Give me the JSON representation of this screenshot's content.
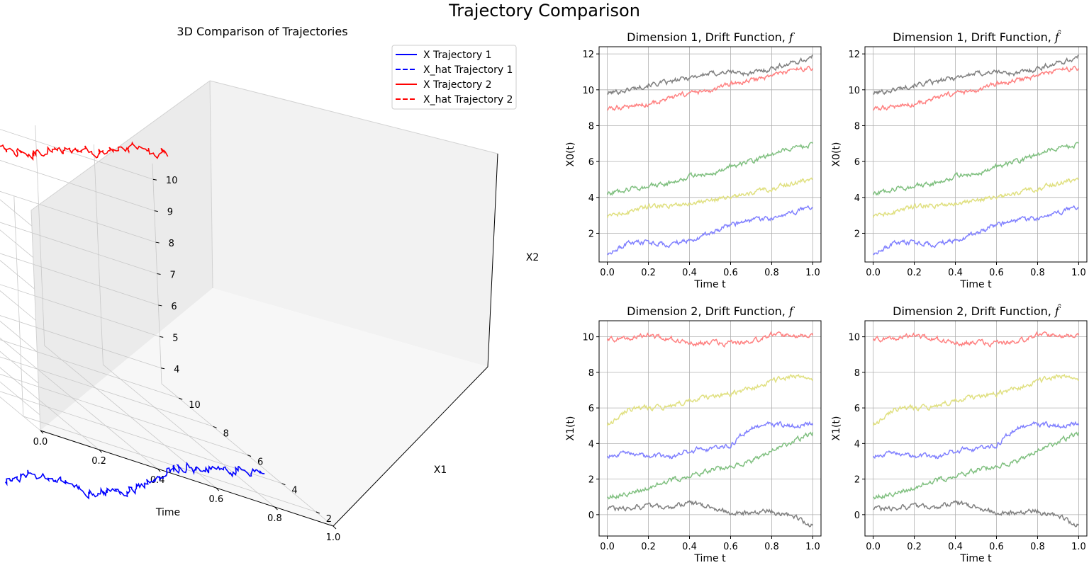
{
  "figure": {
    "title": "Trajectory Comparison"
  },
  "chart_data": [
    {
      "type": "line3d",
      "title": "3D Comparison of Trajectories",
      "xlabel": "Time",
      "ylabel": "X1",
      "zlabel": "X2",
      "xlim": [
        0,
        1
      ],
      "ylim": [
        1,
        11
      ],
      "zlim": [
        3.5,
        10.5
      ],
      "xticks": [
        "0.0",
        "0.2",
        "0.4",
        "0.6",
        "0.8",
        "1.0"
      ],
      "yticks": [
        "2",
        "4",
        "6",
        "8",
        "10"
      ],
      "zticks": [
        "4",
        "5",
        "6",
        "7",
        "8",
        "9",
        "10"
      ],
      "legend_position": "top-right",
      "legend": [
        {
          "label": "X Trajectory 1",
          "color": "#0000ff",
          "style": "solid"
        },
        {
          "label": "X_hat Trajectory 1",
          "color": "#0000ff",
          "style": "dashed"
        },
        {
          "label": "X Trajectory 2",
          "color": "#ff0000",
          "style": "solid"
        },
        {
          "label": "X_hat Trajectory 2",
          "color": "#ff0000",
          "style": "dashed"
        }
      ],
      "series": [
        {
          "name": "X Trajectory 1",
          "color": "#0000ff",
          "t": [
            0.0,
            0.1,
            0.2,
            0.3,
            0.4,
            0.5,
            0.6,
            0.7,
            0.8,
            0.9,
            1.0
          ],
          "x1": [
            3.3,
            3.5,
            3.3,
            3.2,
            3.6,
            3.7,
            3.9,
            4.9,
            5.1,
            5.0,
            5.1
          ],
          "x2": [
            0.9,
            1.3,
            1.5,
            1.4,
            1.6,
            2.0,
            2.6,
            2.7,
            2.8,
            3.1,
            3.5
          ]
        },
        {
          "name": "X Trajectory 2",
          "color": "#ff0000",
          "t": [
            0.0,
            0.1,
            0.2,
            0.3,
            0.4,
            0.5,
            0.6,
            0.7,
            0.8,
            0.9,
            1.0
          ],
          "x1": [
            9.8,
            9.9,
            10.1,
            9.9,
            9.6,
            9.7,
            9.6,
            9.7,
            10.1,
            10.1,
            10.0
          ],
          "x2": [
            8.9,
            9.1,
            9.2,
            9.5,
            9.8,
            9.9,
            10.3,
            10.5,
            10.8,
            11.1,
            11.2
          ]
        }
      ]
    },
    {
      "type": "line",
      "title": "Dimension 1, Drift Function",
      "func": "f",
      "xlabel": "Time t",
      "ylabel": "X0(t)",
      "xlim": [
        -0.04,
        1.04
      ],
      "ylim": [
        0.4,
        12.4
      ],
      "xticks": [
        0,
        0.2,
        0.4,
        0.6,
        0.8,
        1.0
      ],
      "xtick_labels": [
        "0.0",
        "0.2",
        "0.4",
        "0.6",
        "0.8",
        "1.0"
      ],
      "yticks": [
        2,
        4,
        6,
        8,
        10,
        12
      ],
      "ytick_labels": [
        "2",
        "4",
        "6",
        "8",
        "10",
        "12"
      ],
      "grid": true,
      "x": [
        0.0,
        0.1,
        0.2,
        0.3,
        0.4,
        0.5,
        0.6,
        0.7,
        0.8,
        0.9,
        1.0
      ],
      "series": [
        {
          "name": "gray",
          "color": "#808080",
          "values": [
            9.8,
            10.0,
            10.3,
            10.4,
            10.7,
            10.9,
            11.0,
            10.9,
            11.2,
            11.5,
            11.8
          ]
        },
        {
          "name": "red",
          "color": "#ff8080",
          "values": [
            8.9,
            9.1,
            9.2,
            9.5,
            9.8,
            9.9,
            10.3,
            10.5,
            10.8,
            11.1,
            11.2
          ]
        },
        {
          "name": "green",
          "color": "#80c080",
          "values": [
            4.2,
            4.5,
            4.6,
            4.8,
            5.2,
            5.3,
            5.7,
            6.0,
            6.4,
            6.8,
            6.9
          ]
        },
        {
          "name": "yellow",
          "color": "#e0e080",
          "values": [
            2.9,
            3.2,
            3.5,
            3.6,
            3.7,
            3.8,
            4.0,
            4.2,
            4.5,
            4.8,
            5.1
          ]
        },
        {
          "name": "blue",
          "color": "#8080ff",
          "values": [
            0.9,
            1.4,
            1.5,
            1.4,
            1.6,
            2.0,
            2.5,
            2.7,
            2.8,
            3.1,
            3.5
          ]
        }
      ]
    },
    {
      "type": "line",
      "title": "Dimension 1, Drift Function",
      "func": "f̂",
      "xlabel": "Time t",
      "ylabel": "X0(t)",
      "xlim": [
        -0.04,
        1.04
      ],
      "ylim": [
        0.4,
        12.4
      ],
      "xticks": [
        0,
        0.2,
        0.4,
        0.6,
        0.8,
        1.0
      ],
      "xtick_labels": [
        "0.0",
        "0.2",
        "0.4",
        "0.6",
        "0.8",
        "1.0"
      ],
      "yticks": [
        2,
        4,
        6,
        8,
        10,
        12
      ],
      "ytick_labels": [
        "2",
        "4",
        "6",
        "8",
        "10",
        "12"
      ],
      "grid": true,
      "x": [
        0.0,
        0.1,
        0.2,
        0.3,
        0.4,
        0.5,
        0.6,
        0.7,
        0.8,
        0.9,
        1.0
      ],
      "series": [
        {
          "name": "gray",
          "color": "#808080",
          "values": [
            9.8,
            10.0,
            10.3,
            10.4,
            10.7,
            10.9,
            11.0,
            10.9,
            11.2,
            11.5,
            11.8
          ]
        },
        {
          "name": "red",
          "color": "#ff8080",
          "values": [
            8.9,
            9.1,
            9.2,
            9.5,
            9.8,
            9.9,
            10.3,
            10.5,
            10.8,
            11.1,
            11.2
          ]
        },
        {
          "name": "green",
          "color": "#80c080",
          "values": [
            4.2,
            4.5,
            4.6,
            4.8,
            5.2,
            5.3,
            5.7,
            6.0,
            6.4,
            6.8,
            6.9
          ]
        },
        {
          "name": "yellow",
          "color": "#e0e080",
          "values": [
            2.9,
            3.2,
            3.5,
            3.6,
            3.7,
            3.8,
            4.0,
            4.2,
            4.5,
            4.8,
            5.1
          ]
        },
        {
          "name": "blue",
          "color": "#8080ff",
          "values": [
            0.9,
            1.4,
            1.5,
            1.4,
            1.6,
            2.0,
            2.5,
            2.7,
            2.8,
            3.1,
            3.5
          ]
        }
      ]
    },
    {
      "type": "line",
      "title": "Dimension 2, Drift Function",
      "func": "f",
      "xlabel": "Time t",
      "ylabel": "X1(t)",
      "xlim": [
        -0.04,
        1.04
      ],
      "ylim": [
        -1.2,
        10.9
      ],
      "xticks": [
        0,
        0.2,
        0.4,
        0.6,
        0.8,
        1.0
      ],
      "xtick_labels": [
        "0.0",
        "0.2",
        "0.4",
        "0.6",
        "0.8",
        "1.0"
      ],
      "yticks": [
        0,
        2,
        4,
        6,
        8,
        10
      ],
      "ytick_labels": [
        "0",
        "2",
        "4",
        "6",
        "8",
        "10"
      ],
      "grid": true,
      "x": [
        0.0,
        0.1,
        0.2,
        0.3,
        0.4,
        0.5,
        0.6,
        0.7,
        0.8,
        0.9,
        1.0
      ],
      "series": [
        {
          "name": "red",
          "color": "#ff8080",
          "values": [
            9.8,
            9.9,
            10.1,
            9.9,
            9.6,
            9.7,
            9.6,
            9.7,
            10.1,
            10.1,
            10.0
          ]
        },
        {
          "name": "yellow",
          "color": "#e0e080",
          "values": [
            5.0,
            5.9,
            6.0,
            6.1,
            6.4,
            6.6,
            6.8,
            7.1,
            7.5,
            7.8,
            7.6
          ]
        },
        {
          "name": "blue",
          "color": "#8080ff",
          "values": [
            3.3,
            3.5,
            3.3,
            3.2,
            3.6,
            3.7,
            3.9,
            4.9,
            5.1,
            5.0,
            5.1
          ]
        },
        {
          "name": "green",
          "color": "#80c080",
          "values": [
            1.0,
            1.2,
            1.5,
            1.9,
            2.1,
            2.5,
            2.7,
            3.0,
            3.6,
            4.1,
            4.6
          ]
        },
        {
          "name": "gray",
          "color": "#808080",
          "values": [
            0.3,
            0.4,
            0.5,
            0.4,
            0.7,
            0.4,
            0.1,
            0.1,
            0.2,
            -0.1,
            -0.6
          ]
        }
      ]
    },
    {
      "type": "line",
      "title": "Dimension 2, Drift Function",
      "func": "f̂",
      "xlabel": "Time t",
      "ylabel": "X1(t)",
      "xlim": [
        -0.04,
        1.04
      ],
      "ylim": [
        -1.2,
        10.9
      ],
      "xticks": [
        0,
        0.2,
        0.4,
        0.6,
        0.8,
        1.0
      ],
      "xtick_labels": [
        "0.0",
        "0.2",
        "0.4",
        "0.6",
        "0.8",
        "1.0"
      ],
      "yticks": [
        0,
        2,
        4,
        6,
        8,
        10
      ],
      "ytick_labels": [
        "0",
        "2",
        "4",
        "6",
        "8",
        "10"
      ],
      "grid": true,
      "x": [
        0.0,
        0.1,
        0.2,
        0.3,
        0.4,
        0.5,
        0.6,
        0.7,
        0.8,
        0.9,
        1.0
      ],
      "series": [
        {
          "name": "red",
          "color": "#ff8080",
          "values": [
            9.8,
            9.9,
            10.1,
            9.9,
            9.6,
            9.7,
            9.6,
            9.7,
            10.1,
            10.1,
            10.0
          ]
        },
        {
          "name": "yellow",
          "color": "#e0e080",
          "values": [
            5.0,
            5.9,
            6.0,
            6.1,
            6.4,
            6.6,
            6.8,
            7.1,
            7.5,
            7.8,
            7.6
          ]
        },
        {
          "name": "blue",
          "color": "#8080ff",
          "values": [
            3.3,
            3.5,
            3.3,
            3.2,
            3.6,
            3.7,
            3.9,
            4.9,
            5.1,
            5.0,
            5.1
          ]
        },
        {
          "name": "green",
          "color": "#80c080",
          "values": [
            1.0,
            1.2,
            1.5,
            1.9,
            2.1,
            2.5,
            2.7,
            3.0,
            3.6,
            4.1,
            4.6
          ]
        },
        {
          "name": "gray",
          "color": "#808080",
          "values": [
            0.3,
            0.4,
            0.5,
            0.4,
            0.7,
            0.4,
            0.1,
            0.1,
            0.2,
            -0.1,
            -0.6
          ]
        }
      ]
    }
  ]
}
